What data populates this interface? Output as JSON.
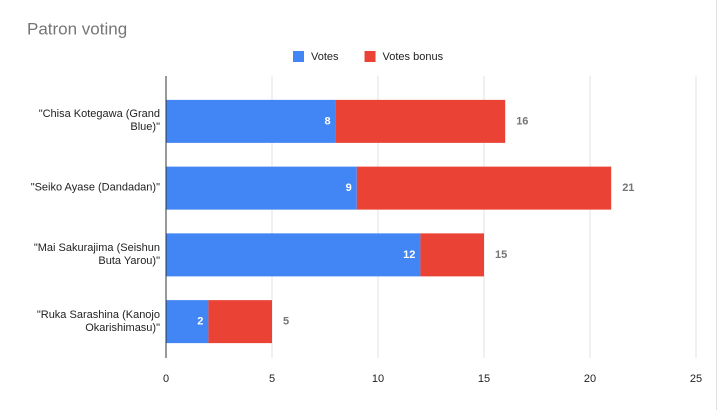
{
  "chart_data": {
    "type": "stacked-bar-horizontal",
    "title": "Patron voting",
    "categories": [
      "\"Chisa Kotegawa (Grand Blue)\"",
      "\"Seiko Ayase (Dandadan)\"",
      "\"Mai Sakurajima (Seishun Buta Yarou)\"",
      "\"Ruka Sarashina (Kanojo Okarishimasu)\""
    ],
    "series": [
      {
        "name": "Votes",
        "color": "#4285f4",
        "values": [
          8,
          9,
          12,
          2
        ]
      },
      {
        "name": "Votes bonus",
        "color": "#ea4335",
        "values": [
          8,
          12,
          3,
          3
        ]
      }
    ],
    "totals": [
      16,
      21,
      15,
      5
    ],
    "xlim": [
      0,
      25
    ],
    "xticks": [
      0,
      5,
      10,
      15,
      20,
      25
    ],
    "grid": true,
    "legend": "top"
  }
}
